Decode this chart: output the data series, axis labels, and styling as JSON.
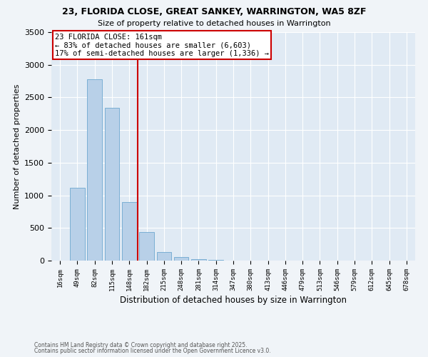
{
  "title_line1": "23, FLORIDA CLOSE, GREAT SANKEY, WARRINGTON, WA5 8ZF",
  "title_line2": "Size of property relative to detached houses in Warrington",
  "xlabel": "Distribution of detached houses by size in Warrington",
  "ylabel": "Number of detached properties",
  "categories": [
    "16sqm",
    "49sqm",
    "82sqm",
    "115sqm",
    "148sqm",
    "182sqm",
    "215sqm",
    "248sqm",
    "281sqm",
    "314sqm",
    "347sqm",
    "380sqm",
    "413sqm",
    "446sqm",
    "479sqm",
    "513sqm",
    "546sqm",
    "579sqm",
    "612sqm",
    "645sqm",
    "678sqm"
  ],
  "values": [
    5,
    1120,
    2780,
    2340,
    900,
    440,
    130,
    60,
    20,
    10,
    5,
    2,
    1,
    1,
    0,
    0,
    0,
    0,
    0,
    0,
    0
  ],
  "bar_color": "#b8d0e8",
  "bar_edgecolor": "#7aafd4",
  "property_line_x": 4.5,
  "annotation_title": "23 FLORIDA CLOSE: 161sqm",
  "annotation_line2": "← 83% of detached houses are smaller (6,603)",
  "annotation_line3": "17% of semi-detached houses are larger (1,336) →",
  "box_color": "#cc0000",
  "ylim": [
    0,
    3500
  ],
  "yticks": [
    0,
    500,
    1000,
    1500,
    2000,
    2500,
    3000,
    3500
  ],
  "footnote1": "Contains HM Land Registry data © Crown copyright and database right 2025.",
  "footnote2": "Contains public sector information licensed under the Open Government Licence v3.0.",
  "bg_color": "#f0f4f8",
  "plot_bg_color": "#e0eaf4"
}
